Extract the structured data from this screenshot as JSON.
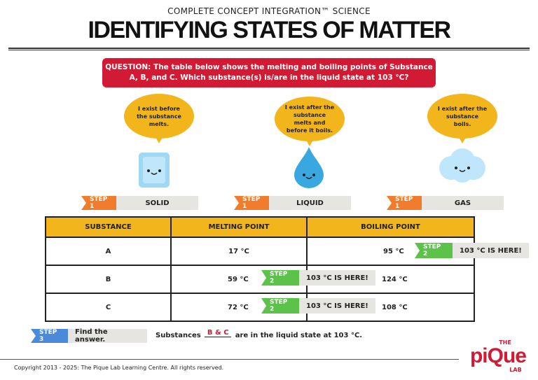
{
  "header": {
    "subtitle": "COMPLETE CONCEPT INTEGRATION™ SCIENCE",
    "title": "IDENTIFYING STATES OF MATTER"
  },
  "question": {
    "label": "QUESTION:",
    "text": "The table below shows the melting and boiling points of Substance A, B, and C. Which substance(s) is/are in the liquid state at 103 °C?"
  },
  "states": [
    {
      "bubble": "I exist before the substance melts.",
      "step": "STEP 1",
      "label": "SOLID",
      "icon": "ice-cube-icon"
    },
    {
      "bubble": "I exist after the substance melts and before it boils.",
      "step": "STEP 1",
      "label": "LIQUID",
      "icon": "water-drop-icon"
    },
    {
      "bubble": "I exist after the substance boils.",
      "step": "STEP 1",
      "label": "GAS",
      "icon": "cloud-icon"
    }
  ],
  "table": {
    "headers": [
      "SUBSTANCE",
      "MELTING POINT",
      "BOILING POINT"
    ],
    "rows": [
      [
        "A",
        "17 °C",
        "95 °C"
      ],
      [
        "B",
        "59 °C",
        "124 °C"
      ],
      [
        "C",
        "72 °C",
        "108 °C"
      ]
    ]
  },
  "step2": {
    "tag": "STEP 2",
    "label": "103 °C IS HERE!"
  },
  "step3": {
    "tag": "STEP 3",
    "label": "Find the answer.",
    "prefix": "Substances",
    "answer": "B & C",
    "suffix": "are in the liquid state at 103 °C."
  },
  "footer": {
    "copyright": "Copyright 2013 - 2025: The Pique Lab Learning Centre. All rights reserved.",
    "logo": "THE piQue LAB"
  },
  "colors": {
    "red": "#d21a35",
    "yellow": "#f2b61c",
    "orange": "#f07c2c",
    "green": "#5cc24a",
    "blue": "#4a8ad8"
  }
}
